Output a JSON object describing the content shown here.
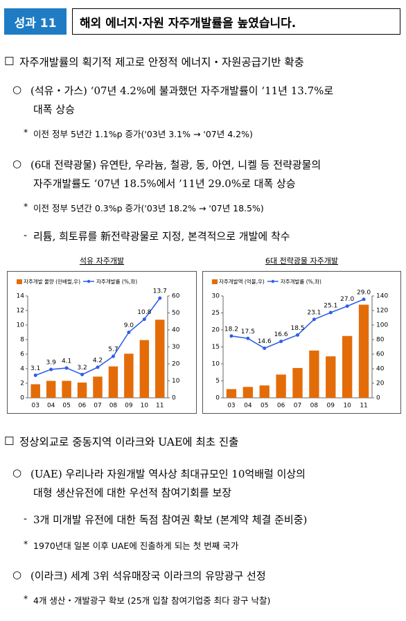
{
  "header": {
    "badge": "성과 11",
    "title": "해외 에너지·자원 자주개발률을 높였습니다."
  },
  "sections": [
    {
      "marker": "□",
      "heading": "자주개발률의 획기적 제고로 안정적 에너지・자원공급기반 확충",
      "items": [
        {
          "marker": "○",
          "lines": [
            "(석유・가스) ‘07년 4.2%에 불과했던 자주개발률이 ‘11년 13.7%로",
            "대폭 상승"
          ]
        },
        {
          "marker": "*",
          "lines": [
            "이전 정부 5년간 1.1%p 증가('03년 3.1% → '07년 4.2%)"
          ]
        },
        {
          "marker": "○",
          "lines": [
            "(6대 전략광물) 유연탄, 우라늄, 철광, 동, 아연, 니켈 등 전략광물의",
            "자주개발률도 ‘07년 18.5%에서 ’11년 29.0%로 대폭 상승"
          ]
        },
        {
          "marker": "*",
          "lines": [
            "이전 정부 5년간 0.3%p 증가('03년 18.2% → '07년 18.5%)"
          ]
        },
        {
          "marker": "-",
          "lines": [
            "리튬, 희토류를 新전략광물로 지정, 본격적으로 개발에 착수"
          ]
        }
      ]
    },
    {
      "marker": "□",
      "heading": "정상외교로 중동지역 이라크와 UAE에 최초 진출",
      "items": [
        {
          "marker": "○",
          "lines": [
            "(UAE) 우리나라 자원개발 역사상 최대규모인 10억배럴 이상의",
            "대형 생산유전에 대한 우선적 참여기회를 보장"
          ]
        },
        {
          "marker": "-",
          "lines": [
            "3개 미개발 유전에 대한 독점 참여권 확보 (본계약 체결 준비중)"
          ]
        },
        {
          "marker": "*",
          "lines": [
            "1970년대 일본 이후 UAE에 진출하게 되는 첫 번째 국가"
          ]
        },
        {
          "marker": "○",
          "lines": [
            "(이라크) 세계 3위 석유매장국 이라크의 유망광구 선정"
          ]
        },
        {
          "marker": "*",
          "lines": [
            "4개 생산・개발광구 확보 (25개 입찰 참여기업중 최다 광구 낙찰)"
          ]
        }
      ]
    }
  ],
  "chart_data": [
    {
      "type": "combo",
      "title": "석유 자주개발",
      "categories": [
        "03",
        "04",
        "05",
        "06",
        "07",
        "08",
        "09",
        "10",
        "11"
      ],
      "series": [
        {
          "name": "자주개발 물량 (만배럴,우)",
          "type": "bar",
          "axis": "y2",
          "color": "#e36c09",
          "values": [
            8,
            10,
            10,
            9,
            12.5,
            18.5,
            26,
            34,
            46
          ]
        },
        {
          "name": "자주개발률 (%,좌)",
          "type": "line",
          "color": "#2f5fe8",
          "values": [
            3.1,
            3.9,
            4.1,
            3.2,
            4.2,
            5.7,
            9.0,
            10.8,
            13.7
          ],
          "value_labels": [
            "3.1",
            "3.9",
            "4.1",
            "3.2",
            "4.2",
            "5.7",
            "9.0",
            "10.8",
            "13.7"
          ]
        }
      ],
      "ylim": [
        0,
        14
      ],
      "yticks": [
        0,
        2,
        4,
        6,
        8,
        10,
        12,
        14
      ],
      "y2lim": [
        0,
        60
      ],
      "y2ticks": [
        0,
        10,
        20,
        30,
        40,
        50,
        60
      ]
    },
    {
      "type": "combo",
      "title": "6대 전략광물 자주개발",
      "categories": [
        "03",
        "04",
        "05",
        "06",
        "07",
        "08",
        "09",
        "10",
        "11"
      ],
      "series": [
        {
          "name": "자주개발액 (억불,우)",
          "type": "bar",
          "axis": "y2",
          "color": "#e36c09",
          "values": [
            12,
            15,
            17,
            32,
            41,
            65,
            57,
            85,
            128
          ]
        },
        {
          "name": "자주개발률 (%,좌)",
          "type": "line",
          "color": "#2f5fe8",
          "values": [
            18.2,
            17.5,
            14.6,
            16.6,
            18.5,
            23.1,
            25.1,
            27.0,
            29.0
          ],
          "value_labels": [
            "18.2",
            "17.5",
            "14.6",
            "16.6",
            "18.5",
            "23.1",
            "25.1",
            "27.0",
            "29.0"
          ]
        }
      ],
      "ylim": [
        0,
        30
      ],
      "yticks": [
        0,
        5,
        10,
        15,
        20,
        25,
        30
      ],
      "y2lim": [
        0,
        140
      ],
      "y2ticks": [
        0,
        20,
        40,
        60,
        80,
        100,
        120,
        140
      ]
    }
  ]
}
